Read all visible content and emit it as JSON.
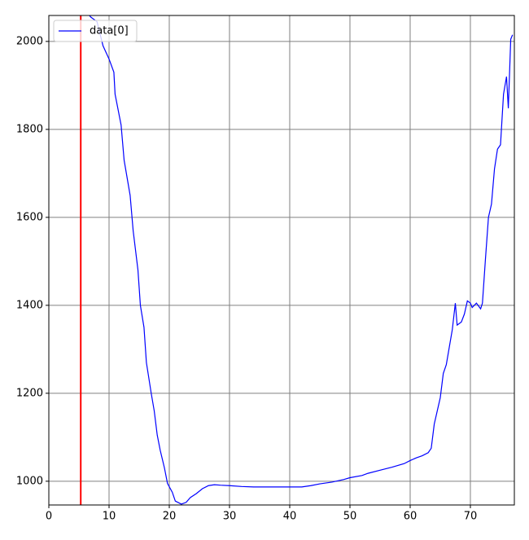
{
  "chart_data": {
    "type": "line",
    "x": [
      6,
      7,
      8,
      9,
      10,
      10.8,
      11,
      12,
      12.5,
      13.5,
      14,
      14.8,
      15.2,
      15.8,
      16.2,
      17,
      17.5,
      18,
      18.5,
      19.2,
      19.7,
      20.5,
      21,
      22,
      22.8,
      23.5,
      24.5,
      25.5,
      26.5,
      27.5,
      28.5,
      30,
      32,
      34,
      36,
      38,
      40,
      42,
      43.5,
      45,
      47,
      49,
      50,
      52,
      53,
      55,
      57,
      59,
      60,
      61,
      62,
      63,
      63.5,
      64,
      65,
      65.5,
      66,
      66.5,
      67,
      67.5,
      67.8,
      68.5,
      69,
      69.5,
      70,
      70.3,
      71,
      71.7,
      72,
      72.5,
      73,
      73.5,
      74,
      74.5,
      75,
      75.5,
      76,
      76.3,
      76.7,
      77
    ],
    "series": [
      {
        "name": "data[0]",
        "color": "#0000ff",
        "values": [
          2070,
          2055,
          2045,
          1990,
          1960,
          1930,
          1880,
          1810,
          1730,
          1650,
          1570,
          1480,
          1400,
          1350,
          1270,
          1200,
          1160,
          1105,
          1070,
          1030,
          995,
          975,
          955,
          948,
          952,
          963,
          972,
          983,
          990,
          992,
          991,
          990,
          988,
          987,
          987,
          987,
          987,
          987,
          990,
          994,
          998,
          1004,
          1008,
          1013,
          1018,
          1025,
          1032,
          1040,
          1047,
          1053,
          1058,
          1065,
          1075,
          1130,
          1190,
          1245,
          1265,
          1305,
          1345,
          1405,
          1355,
          1362,
          1380,
          1410,
          1405,
          1395,
          1405,
          1392,
          1405,
          1505,
          1600,
          1630,
          1710,
          1755,
          1765,
          1880,
          1920,
          1848,
          2005,
          2015
        ]
      }
    ],
    "vline": {
      "x": 5.3,
      "color": "#ff0000"
    },
    "xlim": [
      0,
      77.3
    ],
    "ylim": [
      946,
      2059
    ],
    "xticks": [
      0,
      10,
      20,
      30,
      40,
      50,
      60,
      70
    ],
    "yticks": [
      1000,
      1200,
      1400,
      1600,
      1800,
      2000
    ],
    "grid": true,
    "legend": "upper left"
  }
}
